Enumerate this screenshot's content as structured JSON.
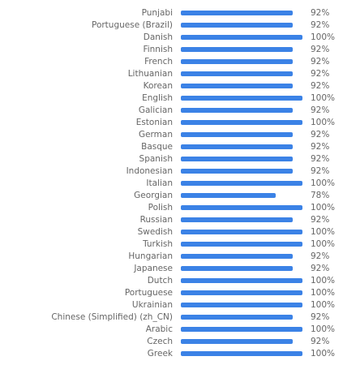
{
  "chart_data": {
    "type": "bar",
    "orientation": "horizontal",
    "bar_color": "#3b82e6",
    "label_color": "#666666",
    "xlim": [
      0,
      100
    ],
    "categories": [
      "Punjabi",
      "Portuguese (Brazil)",
      "Danish",
      "Finnish",
      "French",
      "Lithuanian",
      "Korean",
      "English",
      "Galician",
      "Estonian",
      "German",
      "Basque",
      "Spanish",
      "Indonesian",
      "Italian",
      "Georgian",
      "Polish",
      "Russian",
      "Swedish",
      "Turkish",
      "Hungarian",
      "Japanese",
      "Dutch",
      "Portuguese",
      "Ukrainian",
      "Chinese (Simplified) (zh_CN)",
      "Arabic",
      "Czech",
      "Greek"
    ],
    "values": [
      92,
      92,
      100,
      92,
      92,
      92,
      92,
      100,
      92,
      100,
      92,
      92,
      92,
      92,
      100,
      78,
      100,
      92,
      100,
      100,
      92,
      92,
      100,
      100,
      100,
      92,
      100,
      92,
      100
    ],
    "value_labels": [
      "92%",
      "92%",
      "100%",
      "92%",
      "92%",
      "92%",
      "92%",
      "100%",
      "92%",
      "100%",
      "92%",
      "92%",
      "92%",
      "92%",
      "100%",
      "78%",
      "100%",
      "92%",
      "100%",
      "100%",
      "92%",
      "92%",
      "100%",
      "100%",
      "100%",
      "92%",
      "100%",
      "92%",
      "100%"
    ]
  }
}
